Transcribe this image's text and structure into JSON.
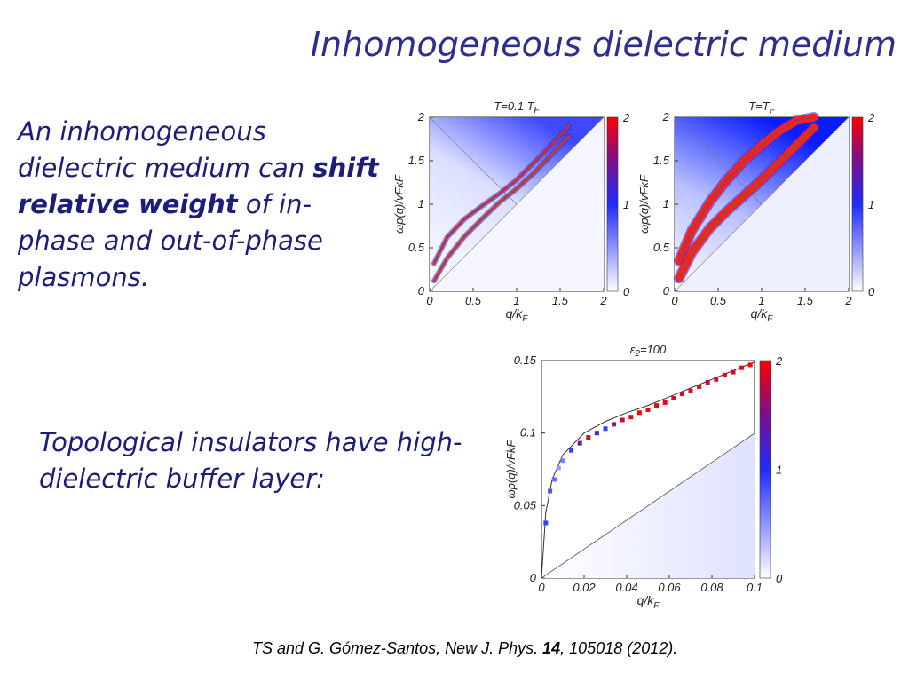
{
  "slide": {
    "title": "Inhomogeneous dielectric medium",
    "text1_pre": "An inhomogeneous dielectric medium can ",
    "text1_bold": "shift relative weight",
    "text1_post": " of in-phase and out-of-phase plasmons.",
    "text2": "Topological insulators have high-dielectric buffer layer:",
    "citation_pre": "TS and G. Gómez-Santos, New J. Phys. ",
    "citation_vol": "14",
    "citation_post": ", 105018 (2012)."
  },
  "colors": {
    "title": "#2e2e8e",
    "text": "#1c1c7a",
    "rule": "#e9a35b",
    "colormap_low": "#ffffff",
    "colormap_mid": "#1f2bff",
    "colormap_high": "#ff0000"
  },
  "chart_data": [
    {
      "type": "heatmap",
      "title_main": "T=0.1 T",
      "title_sub": "F",
      "xlabel_main": "q/k",
      "xlabel_sub": "F",
      "ylabel": "ωp(q)/vFkF",
      "xlim": [
        0,
        2
      ],
      "ylim": [
        0,
        2
      ],
      "xticks": [
        "0",
        "0.5",
        "1",
        "1.5",
        "2"
      ],
      "yticks": [
        "0",
        "0.5",
        "1",
        "1.5",
        "2"
      ],
      "colorbar": {
        "range": [
          0,
          2
        ],
        "ticks": [
          "0",
          "1",
          "2"
        ]
      },
      "in_phase_curve": {
        "x": [
          0.05,
          0.2,
          0.4,
          0.6,
          0.8,
          1.0,
          1.2,
          1.4,
          1.6
        ],
        "y": [
          0.32,
          0.62,
          0.83,
          0.98,
          1.12,
          1.28,
          1.48,
          1.68,
          1.9
        ]
      },
      "out_of_phase_curve": {
        "x": [
          0.05,
          0.2,
          0.4,
          0.6,
          0.8,
          1.0,
          1.2,
          1.4,
          1.6
        ],
        "y": [
          0.12,
          0.38,
          0.63,
          0.83,
          1.02,
          1.18,
          1.36,
          1.57,
          1.78
        ]
      }
    },
    {
      "type": "heatmap",
      "title_main": "T=T",
      "title_sub": "F",
      "xlabel_main": "q/k",
      "xlabel_sub": "F",
      "ylabel": "ωp(q)/vFkF",
      "xlim": [
        0,
        2
      ],
      "ylim": [
        0,
        2
      ],
      "xticks": [
        "0",
        "0.5",
        "1",
        "1.5",
        "2"
      ],
      "yticks": [
        "0",
        "0.5",
        "1",
        "1.5",
        "2"
      ],
      "colorbar": {
        "range": [
          0,
          2
        ],
        "ticks": [
          "0",
          "1",
          "2"
        ]
      },
      "in_phase_curve": {
        "x": [
          0.05,
          0.2,
          0.4,
          0.6,
          0.8,
          1.0,
          1.2,
          1.4,
          1.6
        ],
        "y": [
          0.35,
          0.7,
          1.02,
          1.28,
          1.5,
          1.68,
          1.84,
          1.96,
          2.0
        ]
      },
      "out_of_phase_curve": {
        "x": [
          0.05,
          0.2,
          0.4,
          0.6,
          0.8,
          1.0,
          1.2,
          1.4,
          1.6
        ],
        "y": [
          0.15,
          0.45,
          0.72,
          0.92,
          1.1,
          1.28,
          1.48,
          1.68,
          1.88
        ]
      }
    },
    {
      "type": "heatmap",
      "title_main": "ε",
      "title_sub": "2",
      "title_post": "=100",
      "xlabel_main": "q/k",
      "xlabel_sub": "F",
      "ylabel": "ωp(q)/vFkF",
      "xlim": [
        0,
        0.1
      ],
      "ylim": [
        0,
        0.15
      ],
      "xticks": [
        "0",
        "0.02",
        "0.04",
        "0.06",
        "0.08",
        "0.1"
      ],
      "yticks": [
        "0",
        "0.05",
        "0.1",
        "0.15"
      ],
      "colorbar": {
        "range": [
          0,
          2
        ],
        "ticks": [
          "0",
          "1",
          "2"
        ]
      },
      "plasmon_points": {
        "x": [
          0.002,
          0.004,
          0.006,
          0.008,
          0.01,
          0.014,
          0.018,
          0.022,
          0.026,
          0.03,
          0.034,
          0.038,
          0.042,
          0.046,
          0.05,
          0.054,
          0.058,
          0.062,
          0.066,
          0.07,
          0.074,
          0.078,
          0.082,
          0.086,
          0.09,
          0.094,
          0.098
        ],
        "y": [
          0.038,
          0.06,
          0.068,
          0.076,
          0.081,
          0.088,
          0.093,
          0.097,
          0.1,
          0.103,
          0.106,
          0.109,
          0.111,
          0.114,
          0.116,
          0.119,
          0.121,
          0.124,
          0.127,
          0.129,
          0.132,
          0.135,
          0.137,
          0.14,
          0.142,
          0.145,
          0.147
        ],
        "weight": [
          0.9,
          0.8,
          0.7,
          0.5,
          0.6,
          0.9,
          1.3,
          1.8,
          1.2,
          0.9,
          1.4,
          1.8,
          1.9,
          2.0,
          1.9,
          2.0,
          1.9,
          1.8,
          1.9,
          1.8,
          1.9,
          1.7,
          1.8,
          1.9,
          1.8,
          1.9,
          2.0
        ]
      },
      "envelope_curve": {
        "x": [
          0,
          0.002,
          0.005,
          0.01,
          0.02,
          0.03,
          0.04,
          0.05,
          0.06,
          0.07,
          0.08,
          0.09,
          0.1
        ],
        "y": [
          0,
          0.045,
          0.068,
          0.085,
          0.1,
          0.108,
          0.114,
          0.119,
          0.125,
          0.131,
          0.137,
          0.143,
          0.149
        ]
      }
    }
  ]
}
